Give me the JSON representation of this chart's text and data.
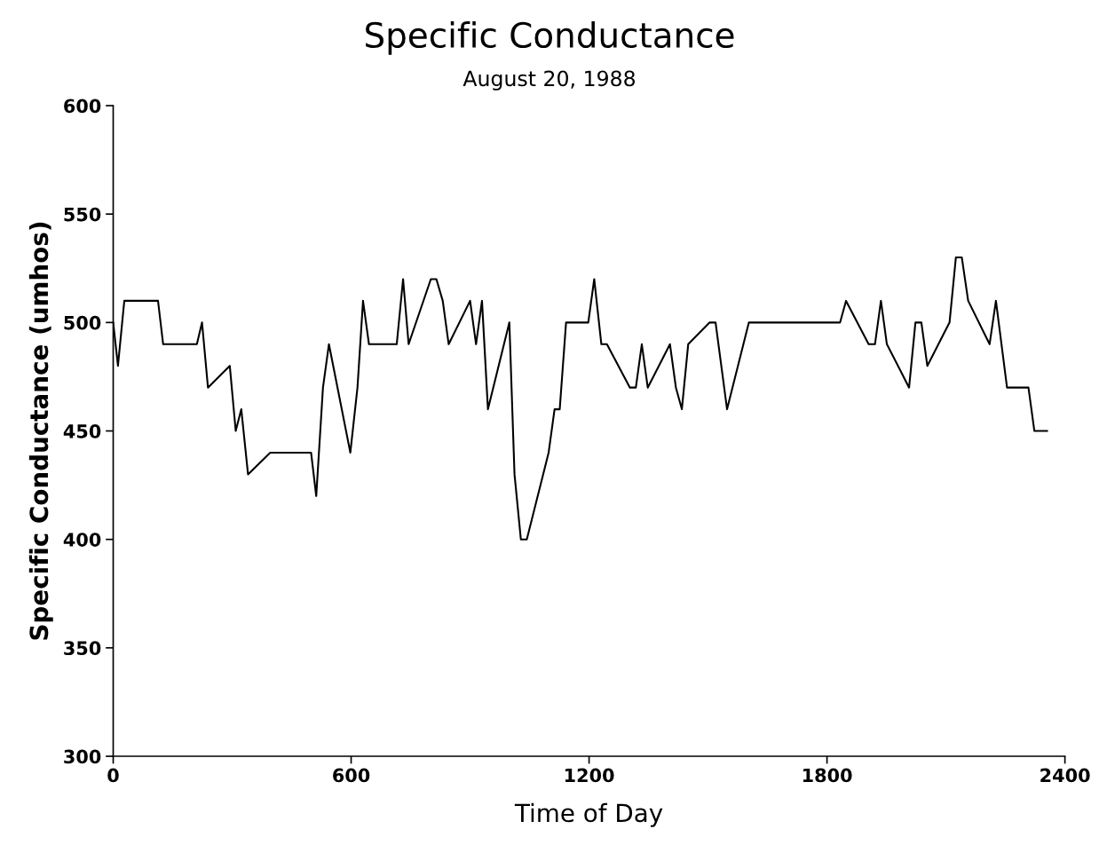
{
  "chart_data": {
    "type": "line",
    "title": "Specific Conductance",
    "subtitle": "August 20, 1988",
    "xlabel": "Time of Day",
    "ylabel": "Specific Conductance (umhos)",
    "xlim": [
      0,
      2400
    ],
    "xticks": [
      0,
      600,
      1200,
      1800,
      2400
    ],
    "ylim": [
      300,
      600
    ],
    "yticks": [
      300,
      350,
      400,
      450,
      500,
      550,
      600
    ],
    "grid": false,
    "marker": "none",
    "line_style": "solid",
    "series": [
      {
        "color": "#000000",
        "x": [
          0,
          12,
          28,
          113,
          126,
          211,
          224,
          239,
          294,
          309,
          323,
          340,
          396,
          499,
          512,
          529,
          544,
          598,
          616,
          630,
          645,
          715,
          731,
          745,
          801,
          815,
          831,
          846,
          900,
          915,
          930,
          945,
          999,
          1012,
          1028,
          1043,
          1098,
          1113,
          1126,
          1142,
          1198,
          1213,
          1231,
          1245,
          1303,
          1318,
          1333,
          1348,
          1404,
          1419,
          1434,
          1450,
          1504,
          1519,
          1548,
          1603,
          1833,
          1848,
          1905,
          1921,
          1936,
          1951,
          2007,
          2023,
          2038,
          2053,
          2109,
          2125,
          2140,
          2156,
          2210,
          2226,
          2254,
          2308,
          2323,
          2355
        ],
        "values": [
          500,
          480,
          510,
          510,
          490,
          490,
          500,
          470,
          480,
          450,
          460,
          430,
          440,
          440,
          420,
          470,
          490,
          440,
          470,
          510,
          490,
          490,
          520,
          490,
          520,
          520,
          510,
          490,
          510,
          490,
          510,
          460,
          500,
          430,
          400,
          400,
          440,
          460,
          460,
          500,
          500,
          520,
          490,
          490,
          470,
          470,
          490,
          470,
          490,
          470,
          460,
          490,
          500,
          500,
          460,
          500,
          500,
          510,
          490,
          490,
          510,
          490,
          470,
          500,
          500,
          480,
          500,
          530,
          530,
          510,
          490,
          510,
          470,
          470,
          450,
          450
        ]
      }
    ]
  }
}
